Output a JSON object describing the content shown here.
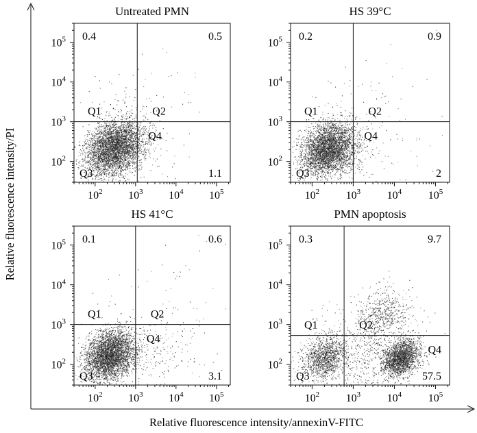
{
  "figure": {
    "ylabel": "Relative fluorescence intensity/PI",
    "xlabel": "Relative fluorescence intensity/annexinV-FITC"
  },
  "chart_data": [
    {
      "type": "scatter",
      "title": "Untreated PMN",
      "x_scale": "log",
      "y_scale": "log",
      "xlim": [
        30,
        220000
      ],
      "ylim": [
        30,
        300000
      ],
      "x_ticks": [
        100,
        1000,
        10000,
        100000
      ],
      "y_ticks": [
        100,
        1000,
        10000,
        100000
      ],
      "gate": {
        "x": 1100,
        "y": 1000
      },
      "quadrant_labels": {
        "Q1": "Q1",
        "Q2": "Q2",
        "Q3": "Q3",
        "Q4": "Q4"
      },
      "quadrant_percent": {
        "Q1": "0.4",
        "Q2": "0.5",
        "Q3": "",
        "Q4": "1.1"
      },
      "populations": [
        {
          "region": "Q3",
          "center_x": 300,
          "center_y": 220,
          "spread_log": 0.36,
          "points": 4200
        },
        {
          "region": "Q4",
          "center_x": 3000,
          "center_y": 180,
          "spread_log": 0.6,
          "points": 45
        },
        {
          "region": "Q2",
          "center_x": 5000,
          "center_y": 8000,
          "spread_log": 0.7,
          "points": 25
        },
        {
          "region": "Q1",
          "center_x": 300,
          "center_y": 3000,
          "spread_log": 0.4,
          "points": 35
        }
      ]
    },
    {
      "type": "scatter",
      "title": "HS 39°C",
      "x_scale": "log",
      "y_scale": "log",
      "xlim": [
        30,
        220000
      ],
      "ylim": [
        30,
        300000
      ],
      "x_ticks": [
        100,
        1000,
        10000,
        100000
      ],
      "y_ticks": [
        100,
        1000,
        10000,
        100000
      ],
      "gate": {
        "x": 1000,
        "y": 1000
      },
      "quadrant_labels": {
        "Q1": "Q1",
        "Q2": "Q2",
        "Q3": "Q3",
        "Q4": "Q4"
      },
      "quadrant_percent": {
        "Q1": "0.2",
        "Q2": "0.9",
        "Q3": "",
        "Q4": "2"
      },
      "populations": [
        {
          "region": "Q3",
          "center_x": 250,
          "center_y": 200,
          "spread_log": 0.33,
          "points": 3900
        },
        {
          "region": "Q4",
          "center_x": 3000,
          "center_y": 200,
          "spread_log": 0.6,
          "points": 80
        },
        {
          "region": "Q2",
          "center_x": 8000,
          "center_y": 8000,
          "spread_log": 0.7,
          "points": 40
        },
        {
          "region": "Q1",
          "center_x": 300,
          "center_y": 2500,
          "spread_log": 0.35,
          "points": 20
        }
      ]
    },
    {
      "type": "scatter",
      "title": "HS 41°C",
      "x_scale": "log",
      "y_scale": "log",
      "xlim": [
        30,
        220000
      ],
      "ylim": [
        30,
        300000
      ],
      "x_ticks": [
        100,
        1000,
        10000,
        100000
      ],
      "y_ticks": [
        100,
        1000,
        10000,
        100000
      ],
      "gate": {
        "x": 1000,
        "y": 1000
      },
      "quadrant_labels": {
        "Q1": "Q1",
        "Q2": "Q2",
        "Q3": "Q3",
        "Q4": "Q4"
      },
      "quadrant_percent": {
        "Q1": "0.1",
        "Q2": "0.6",
        "Q3": "",
        "Q4": "3.1"
      },
      "populations": [
        {
          "region": "Q3",
          "center_x": 230,
          "center_y": 170,
          "spread_log": 0.32,
          "points": 3900
        },
        {
          "region": "Q4",
          "center_x": 4000,
          "center_y": 200,
          "spread_log": 0.55,
          "points": 220
        },
        {
          "region": "Q2",
          "center_x": 8000,
          "center_y": 10000,
          "spread_log": 0.6,
          "points": 30
        },
        {
          "region": "Q1",
          "center_x": 300,
          "center_y": 2500,
          "spread_log": 0.35,
          "points": 15
        }
      ]
    },
    {
      "type": "scatter",
      "title": "PMN apoptosis",
      "x_scale": "log",
      "y_scale": "log",
      "xlim": [
        30,
        220000
      ],
      "ylim": [
        30,
        300000
      ],
      "x_ticks": [
        100,
        1000,
        10000,
        100000
      ],
      "y_ticks": [
        100,
        1000,
        10000,
        100000
      ],
      "gate": {
        "x": 600,
        "y": 530
      },
      "quadrant_labels": {
        "Q1": "Q1",
        "Q2": "Q2",
        "Q3": "Q3",
        "Q4": "Q4"
      },
      "quadrant_percent": {
        "Q1": "0.3",
        "Q2": "9.7",
        "Q3": "",
        "Q4": "57.5"
      },
      "populations": [
        {
          "region": "Q3",
          "center_x": 200,
          "center_y": 150,
          "spread_log": 0.28,
          "points": 1300
        },
        {
          "region": "Q4",
          "center_x": 14000,
          "center_y": 150,
          "spread_log": 0.22,
          "points": 2200
        },
        {
          "region": "Q4",
          "center_x": 2500,
          "center_y": 150,
          "spread_log": 0.55,
          "points": 500
        },
        {
          "region": "Q2",
          "center_x": 5000,
          "center_y": 1700,
          "spread_log": 0.35,
          "points": 600
        },
        {
          "region": "Q1",
          "center_x": 300,
          "center_y": 1500,
          "spread_log": 0.3,
          "points": 20
        }
      ]
    }
  ]
}
